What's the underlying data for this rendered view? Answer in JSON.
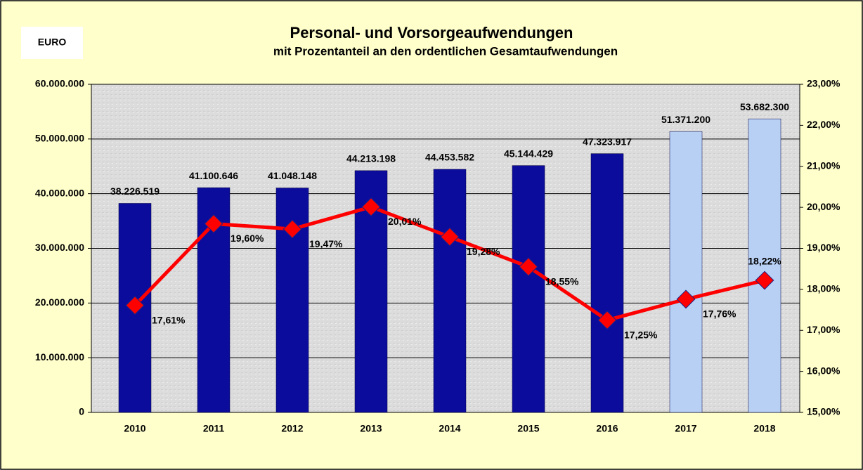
{
  "chart_data": {
    "type": "bar",
    "title": "Personal- und Vorsorgeaufwendungen",
    "subtitle": "mit Prozentanteil an den ordentlichen Gesamtaufwendungen",
    "unit_label": "EURO",
    "categories": [
      "2010",
      "2011",
      "2012",
      "2013",
      "2014",
      "2015",
      "2016",
      "2017",
      "2018"
    ],
    "series": [
      {
        "type": "bar",
        "color": "#0c0c9c",
        "colors": [
          "#0c0c9c",
          "#0c0c9c",
          "#0c0c9c",
          "#0c0c9c",
          "#0c0c9c",
          "#0c0c9c",
          "#0c0c9c",
          "#b9d0f5",
          "#b9d0f5"
        ],
        "values": [
          38226519,
          41100646,
          41048148,
          44213198,
          44453582,
          45144429,
          47323917,
          51371200,
          53682300
        ],
        "value_labels": [
          "38.226.519",
          "41.100.646",
          "41.048.148",
          "44.213.198",
          "44.453.582",
          "45.144.429",
          "47.323.917",
          "51.371.200",
          "53.682.300"
        ]
      },
      {
        "type": "line",
        "axis": "y2",
        "color": "#ff0000",
        "marker_color": "#ff0000",
        "values": [
          17.61,
          19.6,
          19.47,
          20.01,
          19.28,
          18.55,
          17.25,
          17.76,
          18.22
        ],
        "value_labels": [
          "17,61%",
          "19,60%",
          "19,47%",
          "20,01%",
          "19,28%",
          "18,55%",
          "17,25%",
          "17,76%",
          "18,22%"
        ]
      }
    ],
    "ylim": [
      0,
      60000000
    ],
    "yticks": [
      0,
      {
        "value": 10000000,
        "label": "10.000.000"
      },
      {
        "value": 20000000,
        "label": "20.000.000"
      },
      {
        "value": 30000000,
        "label": "30.000.000"
      },
      {
        "value": 40000000,
        "label": "40.000.000"
      },
      {
        "value": 50000000,
        "label": "50.000.000"
      },
      {
        "value": 60000000,
        "label": "60.000.000"
      }
    ],
    "y2lim": [
      15,
      23
    ],
    "y2ticks": [
      {
        "value": 15,
        "label": "15,00%"
      },
      {
        "value": 16,
        "label": "16,00%"
      },
      {
        "value": 17,
        "label": "17,00%"
      },
      {
        "value": 18,
        "label": "18,00%"
      },
      {
        "value": 19,
        "label": "19,00%"
      },
      {
        "value": 20,
        "label": "20,00%"
      },
      {
        "value": 21,
        "label": "21,00%"
      },
      {
        "value": 22,
        "label": "22,00%"
      },
      {
        "value": 23,
        "label": "23,00%"
      }
    ],
    "grid": true
  }
}
